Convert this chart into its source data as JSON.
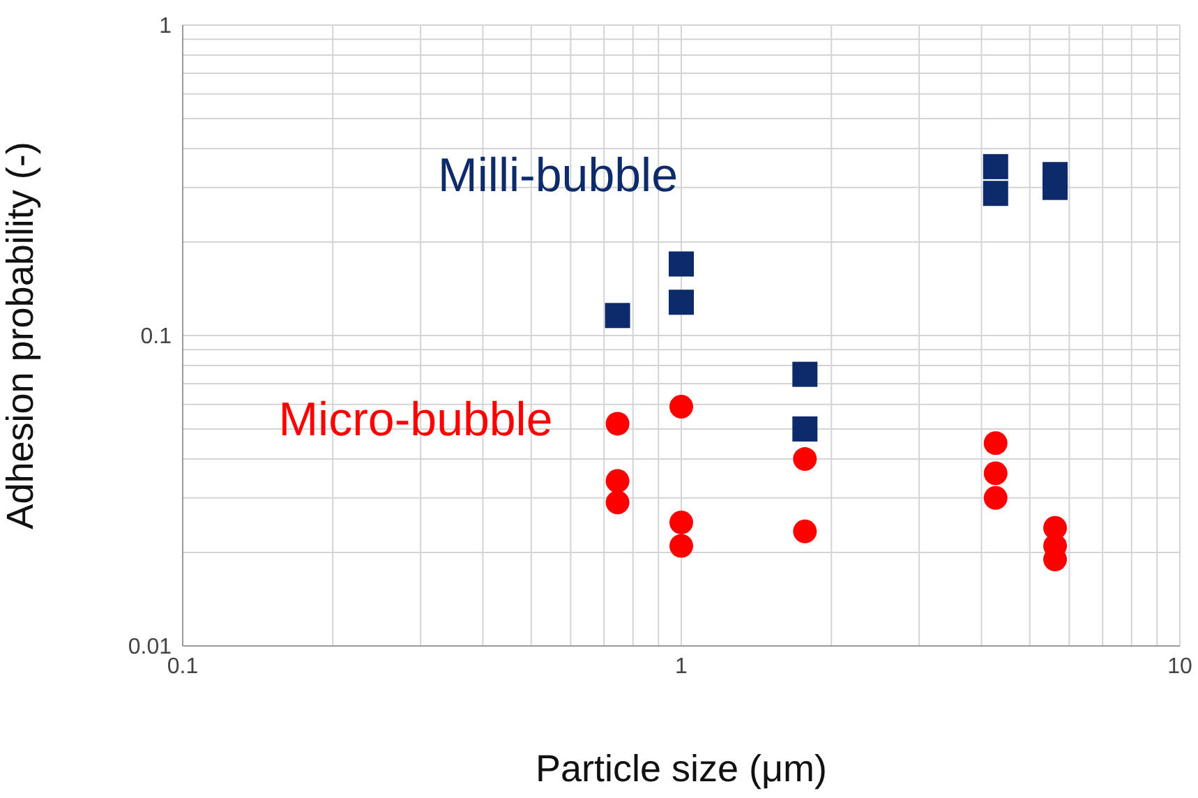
{
  "chart_data": {
    "type": "scatter",
    "xlabel": "Particle size (μm)",
    "ylabel": "Adhesion probability (-)",
    "log": "xy",
    "grid": true,
    "legend": false,
    "xlim": [
      0.1,
      10
    ],
    "xticks": [
      0.1,
      {
        "value": 0.2,
        "label": null
      },
      {
        "value": 0.3,
        "label": null
      },
      {
        "value": 0.4,
        "label": null
      },
      {
        "value": 0.5,
        "label": null
      },
      {
        "value": 0.6,
        "label": null
      },
      {
        "value": 0.7,
        "label": null
      },
      {
        "value": 0.8,
        "label": null
      },
      {
        "value": 0.9,
        "label": null
      },
      1,
      {
        "value": 2,
        "label": null
      },
      {
        "value": 3,
        "label": null
      },
      {
        "value": 4,
        "label": null
      },
      {
        "value": 5,
        "label": null
      },
      {
        "value": 6,
        "label": null
      },
      {
        "value": 7,
        "label": null
      },
      {
        "value": 8,
        "label": null
      },
      {
        "value": 9,
        "label": null
      },
      10
    ],
    "ylim": [
      0.01,
      1
    ],
    "yticks": [
      0.01,
      {
        "value": 0.02,
        "label": null
      },
      {
        "value": 0.03,
        "label": null
      },
      {
        "value": 0.04,
        "label": null
      },
      {
        "value": 0.05,
        "label": null
      },
      {
        "value": 0.06,
        "label": null
      },
      {
        "value": 0.07,
        "label": null
      },
      {
        "value": 0.08,
        "label": null
      },
      {
        "value": 0.09,
        "label": null
      },
      0.1,
      {
        "value": 0.2,
        "label": null
      },
      {
        "value": 0.3,
        "label": null
      },
      {
        "value": 0.4,
        "label": null
      },
      {
        "value": 0.5,
        "label": null
      },
      {
        "value": 0.6,
        "label": null
      },
      {
        "value": 0.7,
        "label": null
      },
      {
        "value": 0.8,
        "label": null
      },
      {
        "value": 0.9,
        "label": null
      },
      1
    ],
    "series": [
      {
        "name": "Milli-bubble",
        "color": "#0d2a6b",
        "marker": "square",
        "x": [
          0.745,
          1.0,
          1.0,
          1.77,
          1.77,
          4.27,
          4.27,
          5.62,
          5.62
        ],
        "values": [
          0.116,
          0.17,
          0.128,
          0.075,
          0.05,
          0.35,
          0.287,
          0.33,
          0.3
        ]
      },
      {
        "name": "Micro-bubble",
        "color": "#ff0000",
        "marker": "circle",
        "x": [
          0.745,
          0.745,
          0.745,
          1.0,
          1.0,
          1.0,
          1.77,
          1.77,
          4.27,
          4.27,
          4.27,
          5.62,
          5.62,
          5.62
        ],
        "values": [
          0.052,
          0.034,
          0.029,
          0.059,
          0.025,
          0.021,
          0.04,
          0.0234,
          0.045,
          0.036,
          0.03,
          0.024,
          0.021,
          0.019
        ]
      }
    ]
  }
}
